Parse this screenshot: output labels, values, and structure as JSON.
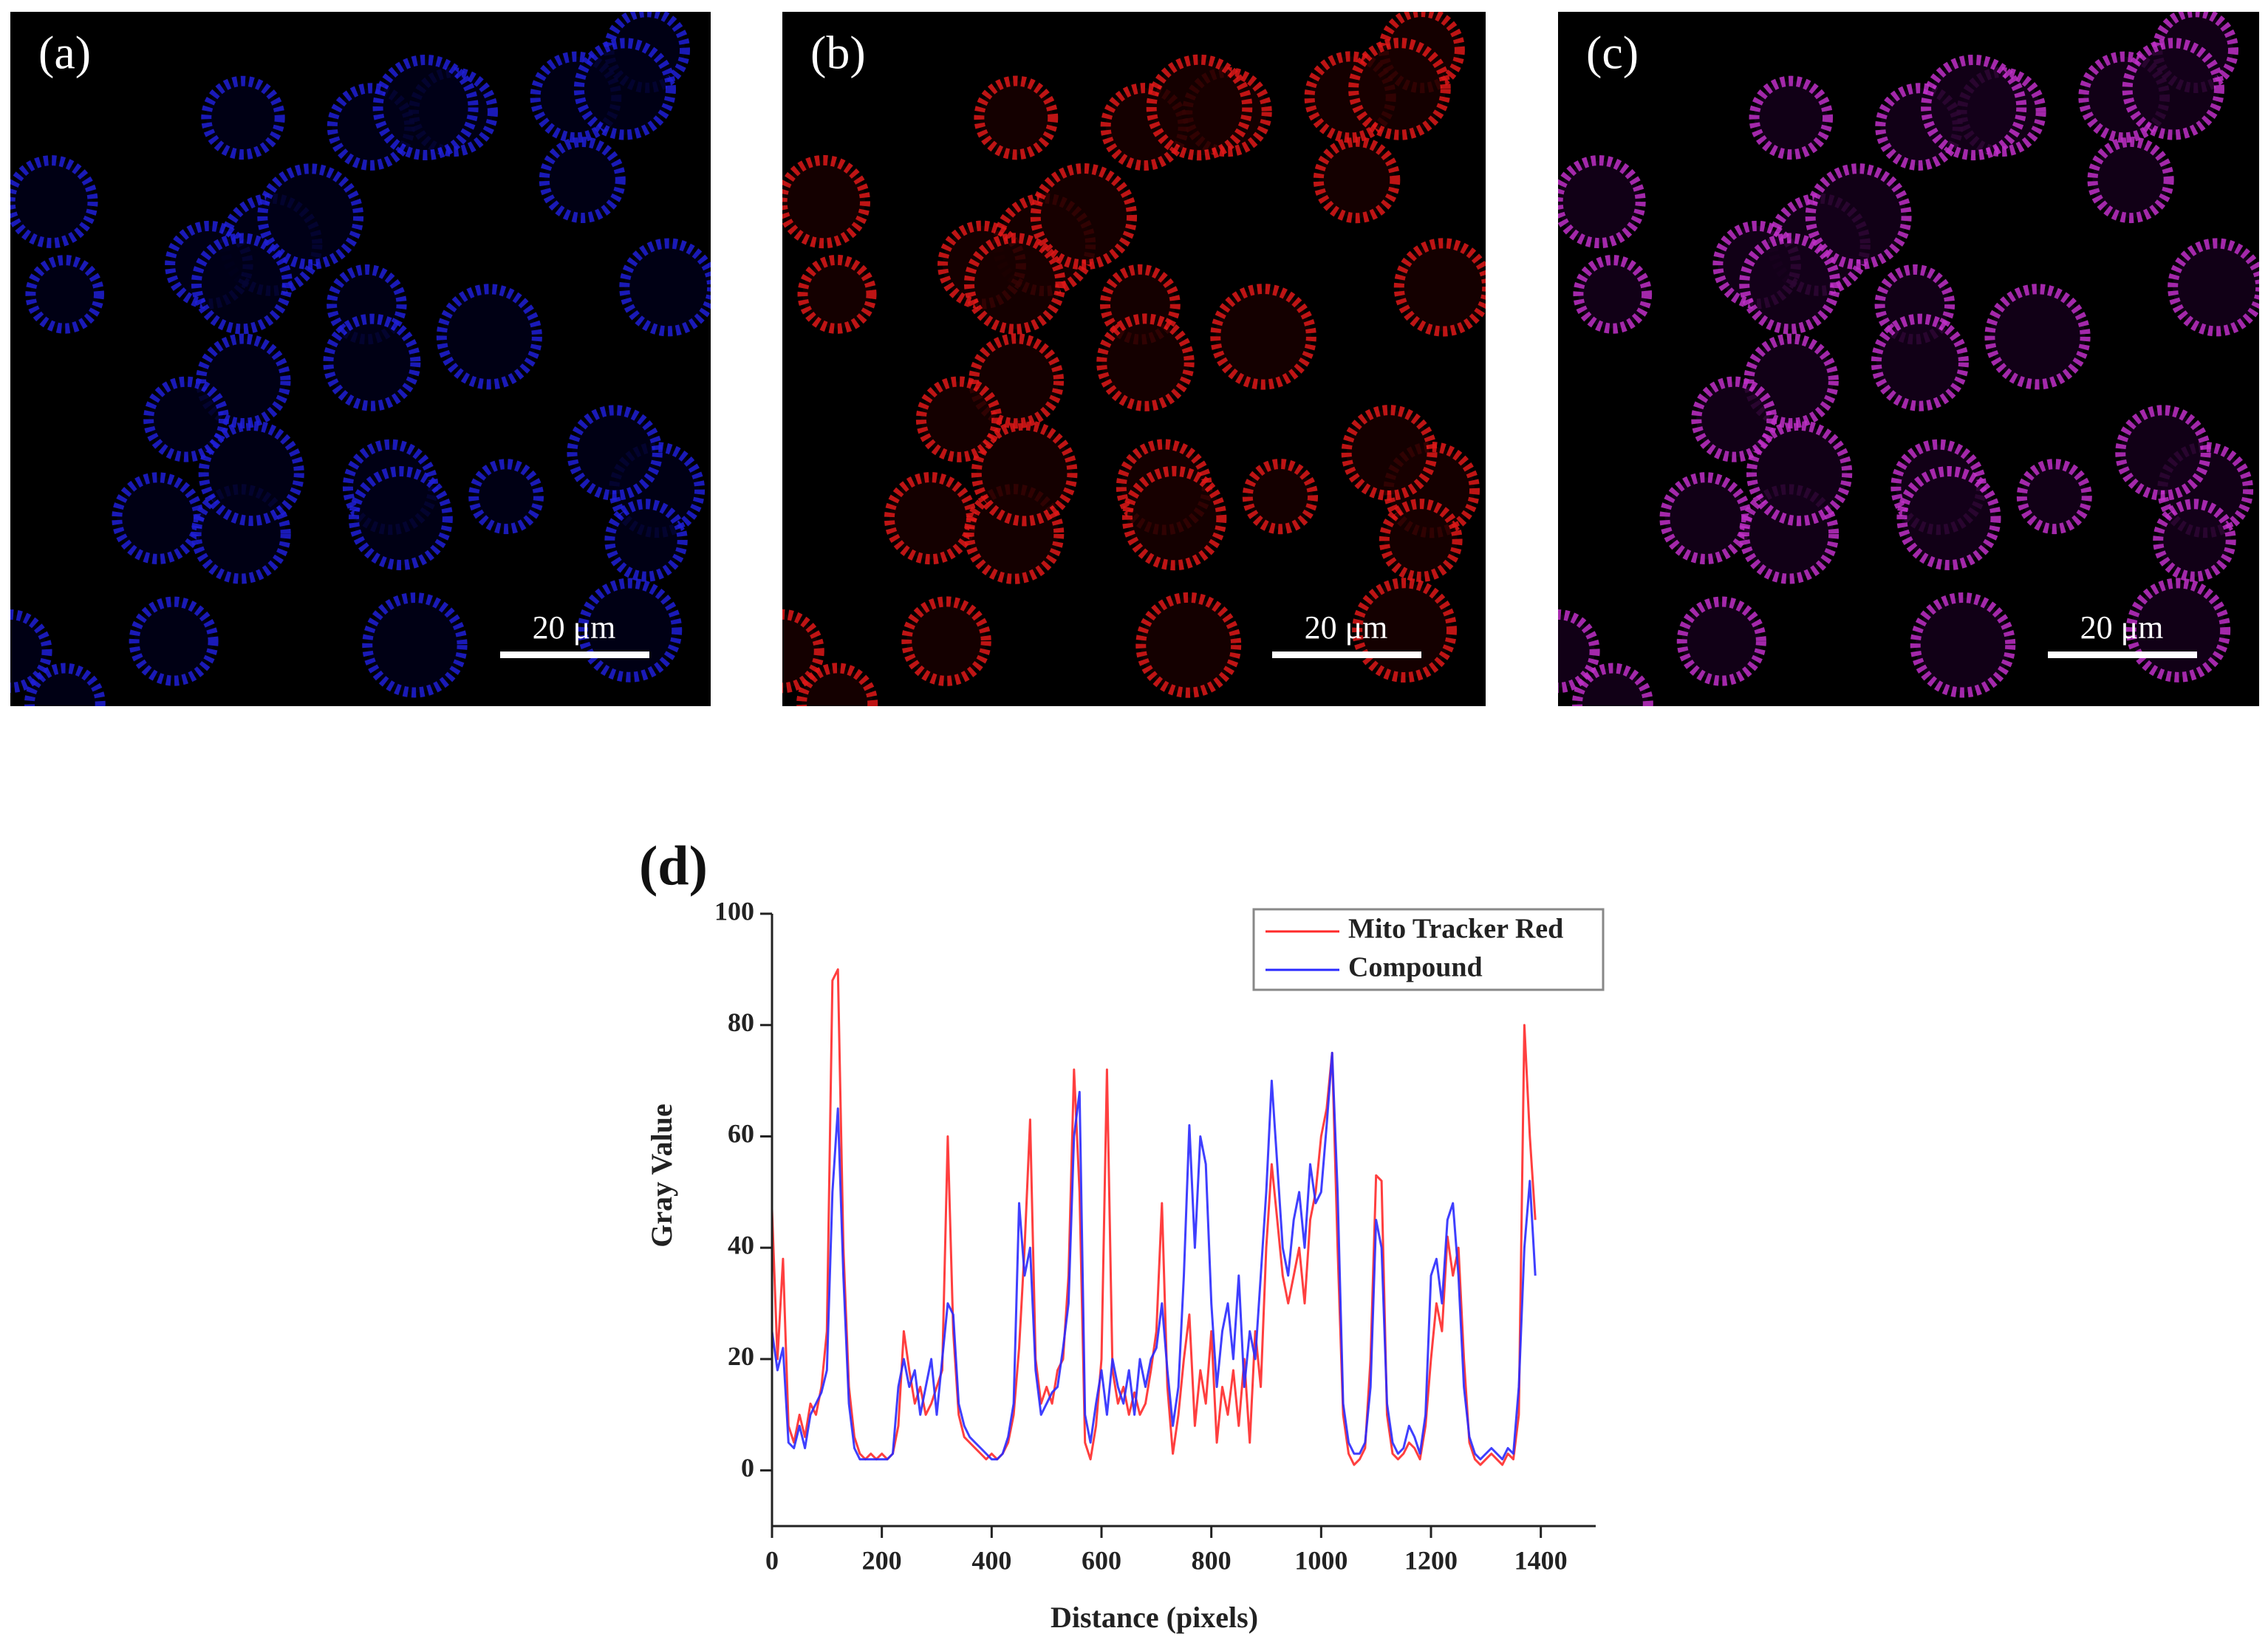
{
  "panels": [
    {
      "label": "(a)",
      "scale_bar": "20 μm"
    },
    {
      "label": "(b)",
      "scale_bar": "20 μm"
    },
    {
      "label": "(c)",
      "scale_bar": "20 μm"
    }
  ],
  "chart_data": {
    "type": "line",
    "label": "(d)",
    "x_label": "Distance (pixels)",
    "y_label": "Gray Value",
    "x": [
      0,
      10,
      20,
      30,
      40,
      50,
      60,
      70,
      80,
      90,
      100,
      110,
      120,
      130,
      140,
      150,
      160,
      170,
      180,
      190,
      200,
      210,
      220,
      230,
      240,
      250,
      260,
      270,
      280,
      290,
      300,
      310,
      320,
      330,
      340,
      350,
      360,
      370,
      380,
      390,
      400,
      410,
      420,
      430,
      440,
      450,
      460,
      470,
      480,
      490,
      500,
      510,
      520,
      530,
      540,
      550,
      560,
      570,
      580,
      590,
      600,
      610,
      620,
      630,
      640,
      650,
      660,
      670,
      680,
      690,
      700,
      710,
      720,
      730,
      740,
      750,
      760,
      770,
      780,
      790,
      800,
      810,
      820,
      830,
      840,
      850,
      860,
      870,
      880,
      890,
      900,
      910,
      920,
      930,
      940,
      950,
      960,
      970,
      980,
      990,
      1000,
      1010,
      1020,
      1030,
      1040,
      1050,
      1060,
      1070,
      1080,
      1090,
      1100,
      1110,
      1120,
      1130,
      1140,
      1150,
      1160,
      1170,
      1180,
      1190,
      1200,
      1210,
      1220,
      1230,
      1240,
      1250,
      1260,
      1270,
      1280,
      1290,
      1300,
      1310,
      1320,
      1330,
      1340,
      1350,
      1360,
      1370,
      1380,
      1390
    ],
    "series": [
      {
        "name": "Mito Tracker Red",
        "color": "#ff2a2a",
        "values": [
          47,
          20,
          38,
          8,
          5,
          10,
          6,
          12,
          10,
          15,
          25,
          88,
          90,
          40,
          15,
          6,
          3,
          2,
          3,
          2,
          3,
          2,
          3,
          8,
          25,
          18,
          12,
          15,
          10,
          12,
          15,
          18,
          60,
          25,
          10,
          6,
          5,
          4,
          3,
          2,
          3,
          2,
          3,
          5,
          10,
          22,
          40,
          63,
          20,
          12,
          15,
          12,
          18,
          20,
          35,
          72,
          50,
          5,
          2,
          8,
          20,
          72,
          18,
          12,
          15,
          10,
          14,
          10,
          12,
          18,
          25,
          48,
          15,
          3,
          10,
          20,
          28,
          8,
          18,
          12,
          25,
          5,
          15,
          10,
          18,
          8,
          20,
          5,
          25,
          15,
          40,
          55,
          45,
          35,
          30,
          35,
          40,
          30,
          45,
          50,
          60,
          65,
          75,
          40,
          10,
          3,
          1,
          2,
          4,
          20,
          53,
          52,
          10,
          3,
          2,
          3,
          5,
          4,
          2,
          8,
          20,
          30,
          25,
          42,
          35,
          40,
          20,
          5,
          2,
          1,
          2,
          3,
          2,
          1,
          3,
          2,
          10,
          80,
          60,
          45
        ]
      },
      {
        "name": "Compound",
        "color": "#2a2aff",
        "values": [
          25,
          18,
          22,
          5,
          4,
          8,
          4,
          10,
          12,
          14,
          18,
          50,
          65,
          35,
          12,
          4,
          2,
          2,
          2,
          2,
          2,
          2,
          3,
          15,
          20,
          15,
          18,
          10,
          15,
          20,
          10,
          20,
          30,
          28,
          12,
          8,
          6,
          5,
          4,
          3,
          2,
          2,
          3,
          6,
          12,
          48,
          35,
          40,
          18,
          10,
          12,
          14,
          15,
          22,
          30,
          60,
          68,
          10,
          5,
          12,
          18,
          10,
          20,
          15,
          12,
          18,
          10,
          20,
          15,
          20,
          22,
          30,
          18,
          8,
          15,
          35,
          62,
          40,
          60,
          55,
          30,
          15,
          25,
          30,
          20,
          35,
          15,
          25,
          20,
          35,
          50,
          70,
          55,
          40,
          35,
          45,
          50,
          40,
          55,
          48,
          50,
          62,
          75,
          50,
          12,
          5,
          3,
          3,
          5,
          15,
          45,
          40,
          12,
          5,
          3,
          4,
          8,
          6,
          3,
          10,
          35,
          38,
          30,
          45,
          48,
          35,
          15,
          6,
          3,
          2,
          3,
          4,
          3,
          2,
          4,
          3,
          15,
          40,
          52,
          35
        ]
      }
    ],
    "xlim": [
      0,
      1500
    ],
    "ylim": [
      -10,
      100
    ],
    "xticks": [
      0,
      200,
      400,
      600,
      800,
      1000,
      1200,
      1400
    ],
    "yticks": [
      0,
      20,
      40,
      60,
      80,
      100
    ],
    "legend": "upper right"
  }
}
